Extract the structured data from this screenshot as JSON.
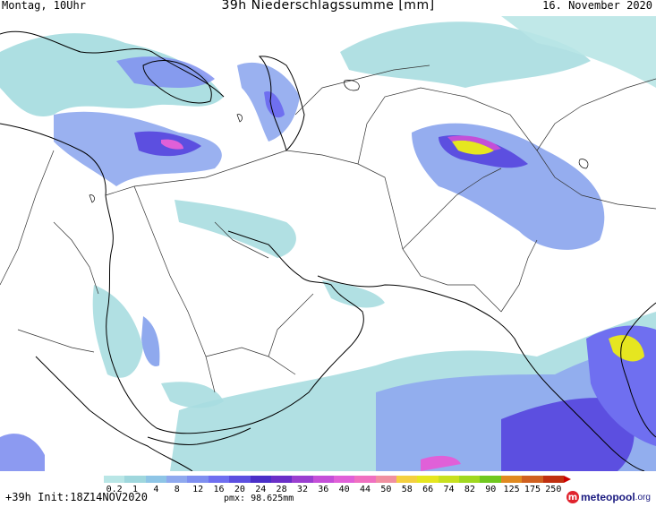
{
  "header": {
    "left": "Montag, 10Uhr",
    "title": "39h Niederschlagssumme [mm]",
    "right": "16. November 2020"
  },
  "legend": {
    "labels": [
      "0.2",
      "1",
      "4",
      "8",
      "12",
      "16",
      "20",
      "24",
      "28",
      "32",
      "36",
      "40",
      "44",
      "50",
      "58",
      "66",
      "74",
      "82",
      "90",
      "125",
      "175",
      "250"
    ],
    "colors": [
      "#b9e6e6",
      "#9fd7dd",
      "#8ec5e6",
      "#8fa9ee",
      "#7f8ff0",
      "#6f6ff0",
      "#5c4fe0",
      "#4a2fc8",
      "#6a2fc8",
      "#9a3fd0",
      "#c44fd8",
      "#e060d8",
      "#f070c0",
      "#f090a0",
      "#f4d040",
      "#e6e620",
      "#c8e020",
      "#a0d820",
      "#70c820",
      "#e08a20",
      "#d06020",
      "#c03010"
    ],
    "unit": "mm"
  },
  "footer": {
    "init": "+39h  Init:18Z14NOV2020",
    "pmx": "pmx: 98.625mm"
  },
  "logo": {
    "text": "meteopool",
    "tld": ".org"
  }
}
